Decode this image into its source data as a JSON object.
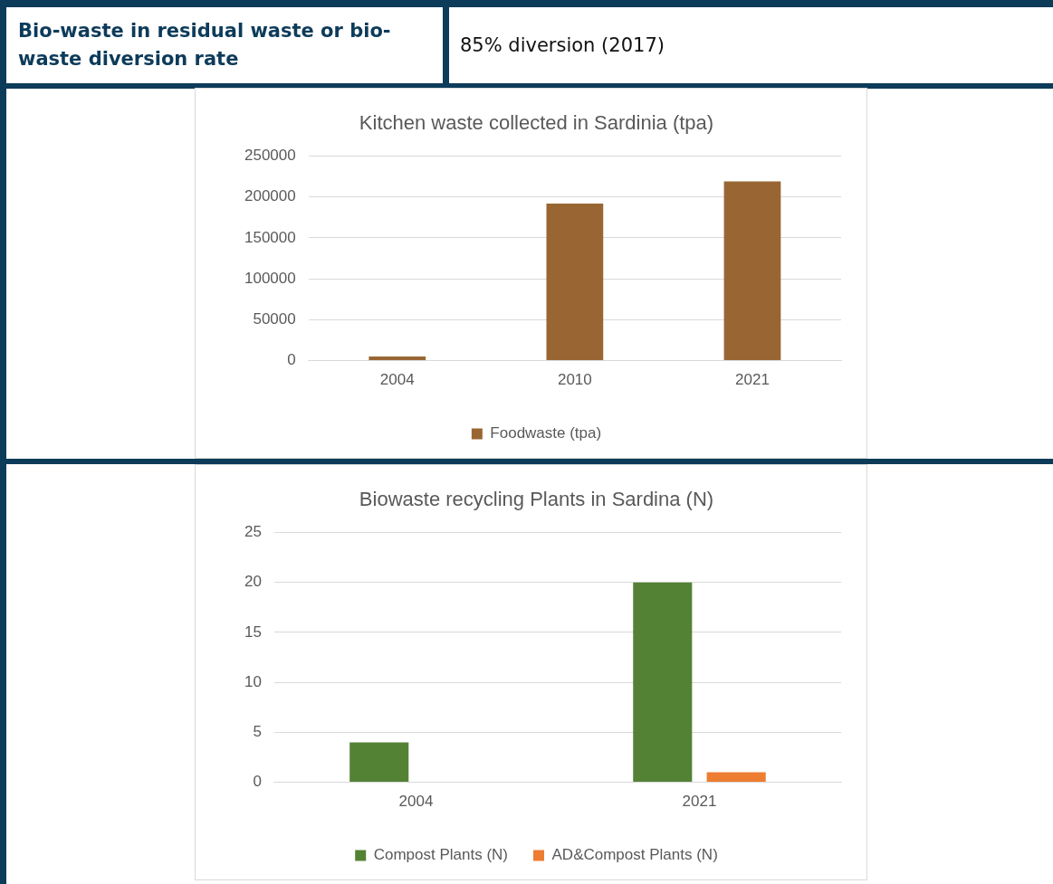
{
  "chart_data": [
    {
      "type": "other",
      "title": "Bio-waste in residual waste or bio-waste diversion rate",
      "annotations": [
        "85% diversion (2017)"
      ]
    },
    {
      "type": "bar",
      "title": "Kitchen waste collected in Sardinia (tpa)",
      "categories": [
        "2004",
        "2010",
        "2021"
      ],
      "series": [
        {
          "name": "Foodwaste (tpa)",
          "color": "#996633",
          "values": [
            5000,
            192000,
            219000
          ]
        }
      ],
      "ylim": [
        0,
        250000
      ],
      "yticks": [
        0,
        50000,
        100000,
        150000,
        200000,
        250000
      ],
      "grid": "y",
      "legend": "bottom"
    },
    {
      "type": "bar",
      "title": "Biowaste recycling Plants in Sardina (N)",
      "categories": [
        "2004",
        "2021"
      ],
      "series": [
        {
          "name": "Compost Plants (N)",
          "color": "#548235",
          "values": [
            4,
            20
          ]
        },
        {
          "name": "AD&Compost Plants (N)",
          "color": "#ed7d31",
          "values": [
            null,
            1
          ]
        }
      ],
      "ylim": [
        0,
        25
      ],
      "yticks": [
        0,
        5,
        10,
        15,
        20,
        25
      ],
      "grid": "y",
      "legend": "bottom"
    }
  ]
}
